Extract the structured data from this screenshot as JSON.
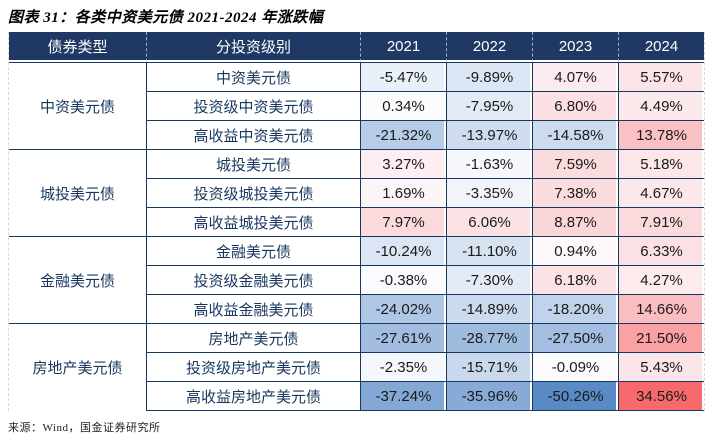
{
  "title": "图表 31：各类中资美元债 2021-2024 年涨跌幅",
  "source": "来源：Wind，国金证券研究所",
  "colors": {
    "header_bg": "#1F3864",
    "header_text": "#FFFFFF",
    "grid_border": "#17375E",
    "scale_negative": "#5A8AC6",
    "scale_neutral": "#FCFCFF",
    "scale_positive": "#F8696B"
  },
  "chart_data": {
    "type": "table",
    "title": "图表 31：各类中资美元债 2021-2024 年涨跌幅",
    "value_format": "percent",
    "columns": [
      "债券类型",
      "分投资级别",
      "2021",
      "2022",
      "2023",
      "2024"
    ],
    "color_scale": {
      "min_value": -50.26,
      "mid_value": 0,
      "max_value": 34.56,
      "min_color": "#5A8AC6",
      "mid_color": "#FCFCFF",
      "max_color": "#F8696B"
    },
    "groups": [
      {
        "type": "中资美元债",
        "rows": [
          {
            "label": "中资美元债",
            "values": [
              -5.47,
              -9.89,
              4.07,
              5.57
            ]
          },
          {
            "label": "投资级中资美元债",
            "values": [
              0.34,
              -7.95,
              6.8,
              4.49
            ]
          },
          {
            "label": "高收益中资美元债",
            "values": [
              -21.32,
              -13.97,
              -14.58,
              13.78
            ]
          }
        ]
      },
      {
        "type": "城投美元债",
        "rows": [
          {
            "label": "城投美元债",
            "values": [
              3.27,
              -1.63,
              7.59,
              5.18
            ]
          },
          {
            "label": "投资级城投美元债",
            "values": [
              1.69,
              -3.35,
              7.38,
              4.67
            ]
          },
          {
            "label": "高收益城投美元债",
            "values": [
              7.97,
              6.06,
              8.87,
              7.91
            ]
          }
        ]
      },
      {
        "type": "金融美元债",
        "rows": [
          {
            "label": "金融美元债",
            "values": [
              -10.24,
              -11.1,
              0.94,
              6.33
            ]
          },
          {
            "label": "投资级金融美元债",
            "values": [
              -0.38,
              -7.3,
              6.18,
              4.27
            ]
          },
          {
            "label": "高收益金融美元债",
            "values": [
              -24.02,
              -14.89,
              -18.2,
              14.66
            ]
          }
        ]
      },
      {
        "type": "房地产美元债",
        "rows": [
          {
            "label": "房地产美元债",
            "values": [
              -27.61,
              -28.77,
              -27.5,
              21.5
            ]
          },
          {
            "label": "投资级房地产美元债",
            "values": [
              -2.35,
              -15.71,
              -0.09,
              5.43
            ]
          },
          {
            "label": "高收益房地产美元债",
            "values": [
              -37.24,
              -35.96,
              -50.26,
              34.56
            ]
          }
        ]
      }
    ]
  }
}
